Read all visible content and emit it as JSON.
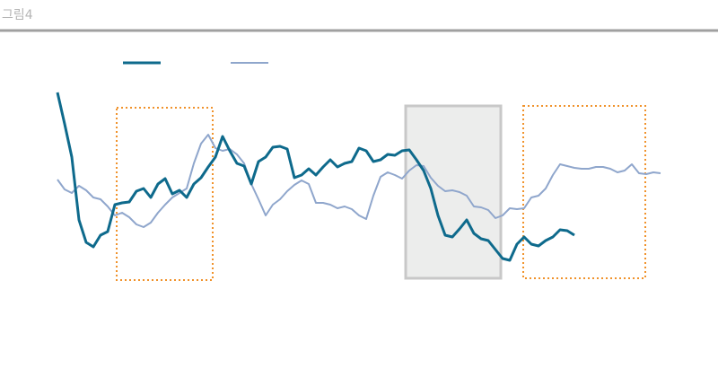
{
  "chart_data": {
    "type": "line",
    "title": "그림4",
    "ylim": [
      0,
      210
    ],
    "series": [
      {
        "color": "#0e6a8c",
        "values": [
          207,
          172,
          135,
          65,
          40,
          35,
          48,
          52,
          82,
          84,
          85,
          97,
          100,
          90,
          105,
          111,
          94,
          98,
          90,
          105,
          112,
          124,
          135,
          158,
          142,
          128,
          125,
          105,
          130,
          135,
          146,
          147,
          144,
          112,
          115,
          122,
          115,
          124,
          132,
          124,
          128,
          130,
          145,
          142,
          130,
          132,
          138,
          137,
          142,
          143,
          132,
          120,
          100,
          70,
          48,
          46,
          55,
          65,
          50,
          44,
          42,
          32,
          22,
          20,
          38,
          46,
          38,
          36,
          42,
          46,
          54,
          53,
          48
        ]
      },
      {
        "color": "#8fa6cc",
        "values": [
          110,
          99,
          95,
          103,
          98,
          90,
          88,
          80,
          70,
          73,
          68,
          60,
          57,
          62,
          73,
          82,
          90,
          95,
          100,
          128,
          150,
          160,
          145,
          142,
          144,
          138,
          128,
          105,
          88,
          70,
          82,
          88,
          97,
          104,
          109,
          105,
          84,
          84,
          82,
          78,
          80,
          77,
          70,
          66,
          92,
          113,
          118,
          115,
          111,
          120,
          126,
          125,
          112,
          103,
          97,
          98,
          96,
          92,
          80,
          79,
          76,
          67,
          70,
          78,
          77,
          78,
          90,
          92,
          100,
          115,
          127,
          125,
          123,
          122,
          122,
          124,
          124,
          122,
          118,
          120,
          127,
          117,
          116,
          118,
          117
        ]
      }
    ]
  }
}
